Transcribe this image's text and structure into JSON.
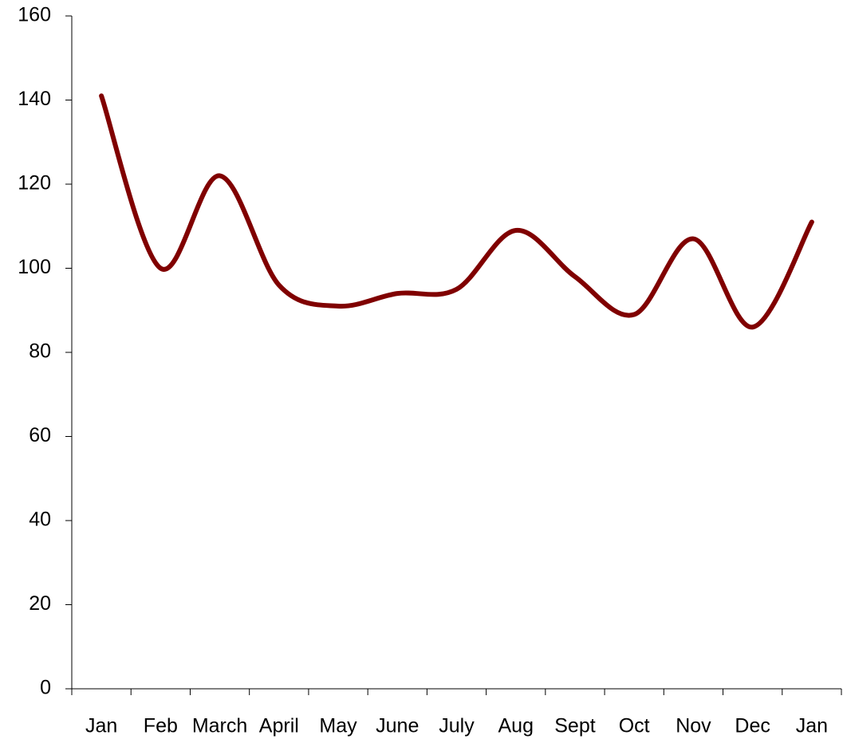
{
  "chart_data": {
    "type": "line",
    "categories": [
      "Jan",
      "Feb",
      "March",
      "April",
      "May",
      "June",
      "July",
      "Aug",
      "Sept",
      "Oct",
      "Nov",
      "Dec",
      "Jan"
    ],
    "series": [
      {
        "color": "#800000",
        "values": [
          141,
          100,
          122,
          96,
          91,
          94,
          95,
          109,
          98,
          89,
          107,
          86,
          111
        ]
      }
    ],
    "ylim": [
      0,
      160
    ],
    "yticks": [
      0,
      20,
      40,
      60,
      80,
      100,
      120,
      140,
      160
    ],
    "grid": false,
    "smooth": true
  }
}
